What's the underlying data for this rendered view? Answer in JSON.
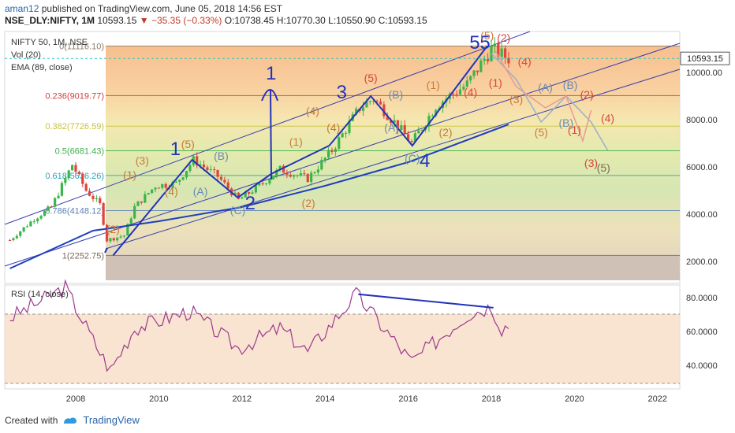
{
  "header": {
    "author": "aman12",
    "published": "published on TradingView.com, June 05, 2018 14:56 EST",
    "symbol": "NSE_DLY:NIFTY, 1M",
    "last": "10593.15",
    "change": "▼ −35.35 (−0.33%)",
    "ohlc": "O:10738.45 H:10770.30 L:10550.90 C:10593.15"
  },
  "legend": {
    "symbol": "NIFTY 50, 1M, NSE",
    "volume": "Vol (20)",
    "ema": "EMA (89, close)",
    "rsi": "RSI (14, close)"
  },
  "footer": {
    "created": "Created with",
    "brand": "TradingView"
  },
  "colors": {
    "wave_blue": "#2233bb",
    "ema_blue": "#1f3fbf",
    "label_orange": "#c87a3a",
    "label_red": "#d9463a",
    "rsi_purple": "#9c3c8c",
    "up_green": "#3bb54a",
    "down_red": "#e0453d"
  },
  "chart_data": [
    {
      "type": "candlestick",
      "title": "NIFTY 50, 1M, NSE",
      "x_axis": {
        "ticks": [
          "2008",
          "2010",
          "2012",
          "2014",
          "2016",
          "2018",
          "2020",
          "2022"
        ],
        "range": [
          "2006-06",
          "2022-09"
        ]
      },
      "y_axis": {
        "ticks": [
          2000,
          4000,
          6000,
          8000,
          10000
        ],
        "tick_labels": [
          "2000.00",
          "4000.00",
          "6000.00",
          "8000.00",
          "10000.00"
        ],
        "range": [
          1500,
          11500
        ]
      },
      "last_price": 10593.15,
      "last_price_label": "10593.15",
      "fib_levels": [
        {
          "ratio": 0,
          "price": 11116.1,
          "label": "0(11116.10)"
        },
        {
          "ratio": 0.236,
          "price": 9019.77,
          "label": "0.236(9019.77)"
        },
        {
          "ratio": 0.382,
          "price": 7726.59,
          "label": "0.382(7726.59)"
        },
        {
          "ratio": 0.5,
          "price": 6681.43,
          "label": "0.5(6681.43)"
        },
        {
          "ratio": 0.618,
          "price": 5636.26,
          "label": "0.618(5636.26)"
        },
        {
          "ratio": 0.786,
          "price": 4148.12,
          "label": "0.786(4148.12)"
        },
        {
          "ratio": 1,
          "price": 2252.75,
          "label": "1(2252.75)"
        }
      ],
      "monthly_close_approx": [
        {
          "t": "2006-06",
          "p": 2900
        },
        {
          "t": "2007-01",
          "p": 3800
        },
        {
          "t": "2007-06",
          "p": 4300
        },
        {
          "t": "2007-12",
          "p": 6100
        },
        {
          "t": "2008-04",
          "p": 5000
        },
        {
          "t": "2008-08",
          "p": 4400
        },
        {
          "t": "2008-10",
          "p": 2900
        },
        {
          "t": "2009-03",
          "p": 3100
        },
        {
          "t": "2009-06",
          "p": 4300
        },
        {
          "t": "2009-12",
          "p": 5200
        },
        {
          "t": "2010-06",
          "p": 5300
        },
        {
          "t": "2010-11",
          "p": 6300
        },
        {
          "t": "2011-06",
          "p": 5600
        },
        {
          "t": "2011-12",
          "p": 4600
        },
        {
          "t": "2012-06",
          "p": 5200
        },
        {
          "t": "2012-12",
          "p": 5900
        },
        {
          "t": "2013-08",
          "p": 5500
        },
        {
          "t": "2014-03",
          "p": 6700
        },
        {
          "t": "2014-11",
          "p": 8500
        },
        {
          "t": "2015-03",
          "p": 8900
        },
        {
          "t": "2015-09",
          "p": 7900
        },
        {
          "t": "2016-02",
          "p": 7000
        },
        {
          "t": "2016-09",
          "p": 8600
        },
        {
          "t": "2017-06",
          "p": 9500
        },
        {
          "t": "2018-01",
          "p": 11000
        },
        {
          "t": "2018-06",
          "p": 10593
        }
      ],
      "ema": [
        {
          "t": "2006-06",
          "p": 1700
        },
        {
          "t": "2008-06",
          "p": 3300
        },
        {
          "t": "2010-01",
          "p": 3700
        },
        {
          "t": "2012-01",
          "p": 4300
        },
        {
          "t": "2014-01",
          "p": 5200
        },
        {
          "t": "2016-01",
          "p": 6200
        },
        {
          "t": "2018-06",
          "p": 7800
        }
      ],
      "wave_labels_primary": [
        "1",
        "2",
        "3",
        "4",
        "5",
        "5",
        "1"
      ],
      "wave_labels_minor": [
        "(1)",
        "(2)",
        "(3)",
        "(4)",
        "(5)",
        "(A)",
        "(B)",
        "(C)"
      ]
    },
    {
      "type": "line",
      "title": "RSI (14, close)",
      "y_axis": {
        "ticks": [
          40,
          60,
          80
        ],
        "tick_labels": [
          "40.0000",
          "60.0000",
          "80.0000"
        ],
        "range": [
          25,
          90
        ]
      },
      "bands": [
        30,
        70
      ],
      "values_approx": [
        {
          "t": "2006-06",
          "p": 68
        },
        {
          "t": "2007-10",
          "p": 86
        },
        {
          "t": "2008-06",
          "p": 55
        },
        {
          "t": "2008-11",
          "p": 37
        },
        {
          "t": "2009-06",
          "p": 62
        },
        {
          "t": "2010-10",
          "p": 72
        },
        {
          "t": "2011-12",
          "p": 50
        },
        {
          "t": "2012-12",
          "p": 62
        },
        {
          "t": "2013-08",
          "p": 48
        },
        {
          "t": "2014-10",
          "p": 82
        },
        {
          "t": "2016-02",
          "p": 42
        },
        {
          "t": "2017-06",
          "p": 70
        },
        {
          "t": "2018-01",
          "p": 75
        },
        {
          "t": "2018-04",
          "p": 62
        },
        {
          "t": "2018-06",
          "p": 64
        }
      ]
    }
  ]
}
